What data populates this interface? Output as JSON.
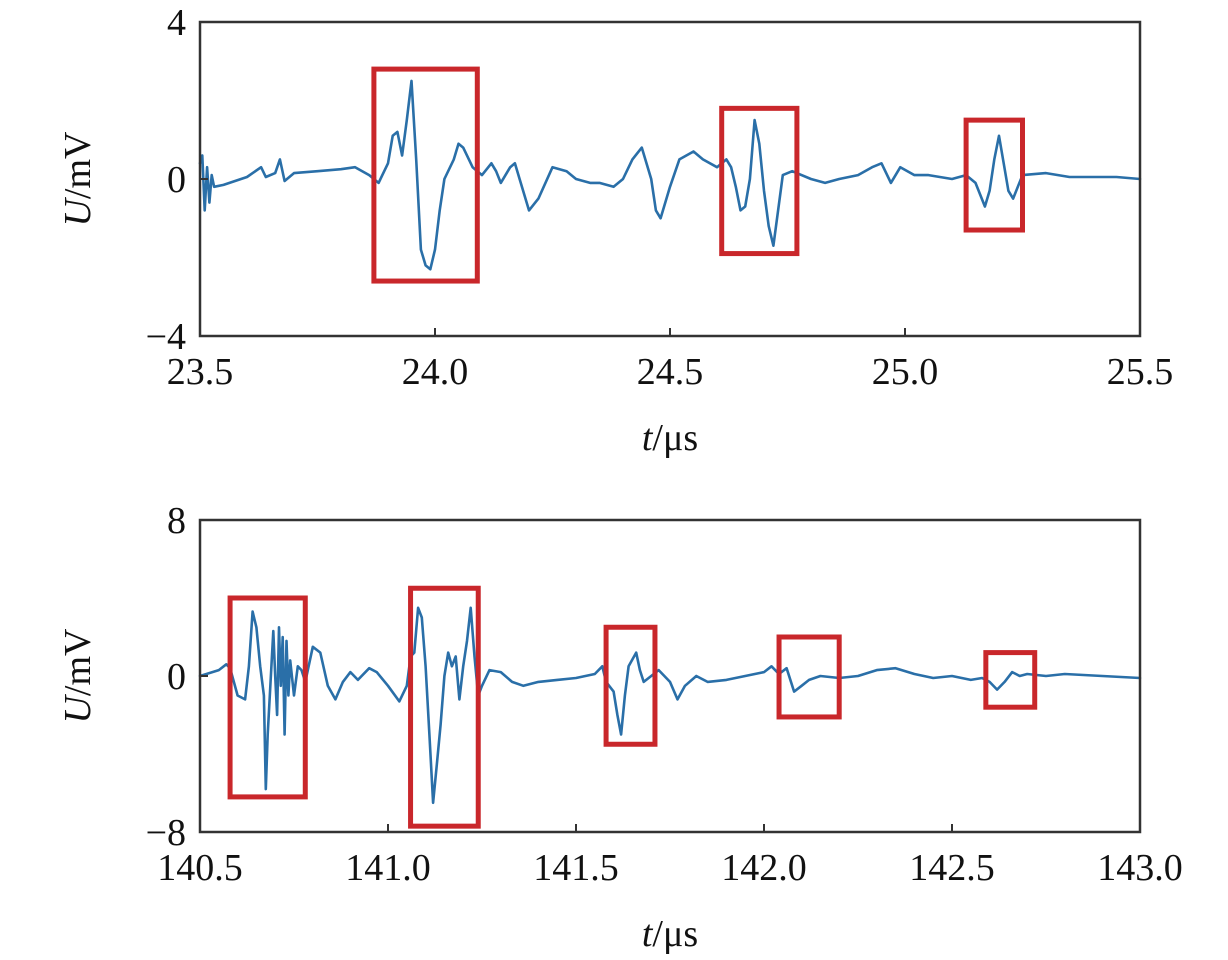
{
  "colors": {
    "signal": "#2a6fa8",
    "highlight": "#c9272b",
    "axis": "#333333"
  },
  "chart_data": [
    {
      "type": "line",
      "name": "top-panel",
      "xlabel_italic": "t",
      "xlabel_unit": "/μs",
      "ylabel_italic": "U",
      "ylabel_unit": "/mV",
      "xlim": [
        23.5,
        25.5
      ],
      "ylim": [
        -4,
        4
      ],
      "xticks": [
        23.5,
        24.0,
        24.5,
        25.0,
        25.5
      ],
      "xtick_labels": [
        "23.5",
        "24.0",
        "24.5",
        "25.0",
        "25.5"
      ],
      "yticks": [
        -4,
        0,
        4
      ],
      "ytick_labels": [
        "−4",
        "0",
        "4"
      ],
      "series": [
        {
          "name": "U",
          "points": [
            [
              23.5,
              0.4
            ],
            [
              23.505,
              0.6
            ],
            [
              23.51,
              -0.8
            ],
            [
              23.515,
              0.3
            ],
            [
              23.52,
              -0.6
            ],
            [
              23.525,
              0.1
            ],
            [
              23.53,
              -0.2
            ],
            [
              23.55,
              -0.15
            ],
            [
              23.6,
              0.05
            ],
            [
              23.63,
              0.3
            ],
            [
              23.64,
              0.05
            ],
            [
              23.66,
              0.15
            ],
            [
              23.67,
              0.5
            ],
            [
              23.68,
              -0.05
            ],
            [
              23.7,
              0.15
            ],
            [
              23.75,
              0.2
            ],
            [
              23.8,
              0.25
            ],
            [
              23.83,
              0.3
            ],
            [
              23.86,
              0.1
            ],
            [
              23.88,
              -0.1
            ],
            [
              23.9,
              0.4
            ],
            [
              23.91,
              1.1
            ],
            [
              23.92,
              1.2
            ],
            [
              23.93,
              0.6
            ],
            [
              23.94,
              1.5
            ],
            [
              23.95,
              2.5
            ],
            [
              23.96,
              0.5
            ],
            [
              23.97,
              -1.8
            ],
            [
              23.98,
              -2.2
            ],
            [
              23.99,
              -2.3
            ],
            [
              24.0,
              -1.8
            ],
            [
              24.01,
              -0.8
            ],
            [
              24.02,
              0.0
            ],
            [
              24.04,
              0.5
            ],
            [
              24.05,
              0.9
            ],
            [
              24.06,
              0.8
            ],
            [
              24.08,
              0.3
            ],
            [
              24.1,
              0.1
            ],
            [
              24.12,
              0.4
            ],
            [
              24.13,
              0.2
            ],
            [
              24.14,
              -0.1
            ],
            [
              24.16,
              0.3
            ],
            [
              24.17,
              0.4
            ],
            [
              24.18,
              0.0
            ],
            [
              24.2,
              -0.8
            ],
            [
              24.22,
              -0.5
            ],
            [
              24.25,
              0.3
            ],
            [
              24.28,
              0.2
            ],
            [
              24.3,
              0.0
            ],
            [
              24.33,
              -0.1
            ],
            [
              24.35,
              -0.1
            ],
            [
              24.38,
              -0.2
            ],
            [
              24.4,
              0.0
            ],
            [
              24.42,
              0.5
            ],
            [
              24.44,
              0.8
            ],
            [
              24.46,
              0.0
            ],
            [
              24.47,
              -0.8
            ],
            [
              24.48,
              -1.0
            ],
            [
              24.5,
              -0.2
            ],
            [
              24.52,
              0.5
            ],
            [
              24.55,
              0.7
            ],
            [
              24.57,
              0.5
            ],
            [
              24.6,
              0.3
            ],
            [
              24.62,
              0.5
            ],
            [
              24.63,
              0.3
            ],
            [
              24.64,
              -0.2
            ],
            [
              24.65,
              -0.8
            ],
            [
              24.66,
              -0.7
            ],
            [
              24.67,
              0.0
            ],
            [
              24.68,
              1.5
            ],
            [
              24.69,
              0.9
            ],
            [
              24.7,
              -0.3
            ],
            [
              24.71,
              -1.2
            ],
            [
              24.72,
              -1.7
            ],
            [
              24.73,
              -0.8
            ],
            [
              24.74,
              0.1
            ],
            [
              24.76,
              0.2
            ],
            [
              24.8,
              0.0
            ],
            [
              24.83,
              -0.1
            ],
            [
              24.86,
              0.0
            ],
            [
              24.9,
              0.1
            ],
            [
              24.93,
              0.3
            ],
            [
              24.95,
              0.4
            ],
            [
              24.97,
              -0.1
            ],
            [
              24.99,
              0.3
            ],
            [
              25.02,
              0.1
            ],
            [
              25.05,
              0.1
            ],
            [
              25.1,
              0.0
            ],
            [
              25.13,
              0.1
            ],
            [
              25.15,
              -0.1
            ],
            [
              25.17,
              -0.7
            ],
            [
              25.18,
              -0.3
            ],
            [
              25.19,
              0.5
            ],
            [
              25.2,
              1.1
            ],
            [
              25.21,
              0.4
            ],
            [
              25.22,
              -0.3
            ],
            [
              25.23,
              -0.5
            ],
            [
              25.24,
              -0.2
            ],
            [
              25.25,
              0.1
            ],
            [
              25.3,
              0.15
            ],
            [
              25.35,
              0.05
            ],
            [
              25.4,
              0.05
            ],
            [
              25.45,
              0.05
            ],
            [
              25.5,
              0.0
            ]
          ]
        }
      ],
      "highlight_boxes": [
        {
          "x0": 23.87,
          "x1": 24.09,
          "y0": -2.6,
          "y1": 2.8
        },
        {
          "x0": 24.61,
          "x1": 24.77,
          "y0": -1.9,
          "y1": 1.8
        },
        {
          "x0": 25.13,
          "x1": 25.25,
          "y0": -1.3,
          "y1": 1.5
        }
      ]
    },
    {
      "type": "line",
      "name": "bottom-panel",
      "xlabel_italic": "t",
      "xlabel_unit": "/μs",
      "ylabel_italic": "U",
      "ylabel_unit": "/mV",
      "xlim": [
        140.5,
        143.0
      ],
      "ylim": [
        -8,
        8
      ],
      "xticks": [
        140.5,
        141.0,
        141.5,
        142.0,
        142.5,
        143.0
      ],
      "xtick_labels": [
        "140.5",
        "141.0",
        "141.5",
        "142.0",
        "142.5",
        "143.0"
      ],
      "yticks": [
        -8,
        0,
        8
      ],
      "ytick_labels": [
        "−8",
        "0",
        "8"
      ],
      "series": [
        {
          "name": "U",
          "points": [
            [
              140.5,
              0.0
            ],
            [
              140.55,
              0.3
            ],
            [
              140.57,
              0.6
            ],
            [
              140.58,
              0.4
            ],
            [
              140.6,
              -1.0
            ],
            [
              140.62,
              -1.2
            ],
            [
              140.63,
              0.5
            ],
            [
              140.64,
              3.3
            ],
            [
              140.65,
              2.5
            ],
            [
              140.66,
              0.5
            ],
            [
              140.67,
              -1.0
            ],
            [
              140.675,
              -5.8
            ],
            [
              140.68,
              -3.0
            ],
            [
              140.69,
              0.5
            ],
            [
              140.695,
              2.3
            ],
            [
              140.7,
              0.0
            ],
            [
              140.705,
              -2.0
            ],
            [
              140.71,
              2.5
            ],
            [
              140.715,
              -0.5
            ],
            [
              140.72,
              2.0
            ],
            [
              140.725,
              -3.0
            ],
            [
              140.73,
              1.8
            ],
            [
              140.735,
              -1.0
            ],
            [
              140.74,
              0.8
            ],
            [
              140.75,
              -1.0
            ],
            [
              140.76,
              0.5
            ],
            [
              140.77,
              0.3
            ],
            [
              140.78,
              -0.3
            ],
            [
              140.8,
              1.5
            ],
            [
              140.82,
              1.2
            ],
            [
              140.84,
              -0.5
            ],
            [
              140.86,
              -1.2
            ],
            [
              140.88,
              -0.3
            ],
            [
              140.9,
              0.2
            ],
            [
              140.92,
              -0.2
            ],
            [
              140.95,
              0.4
            ],
            [
              140.97,
              0.2
            ],
            [
              141.0,
              -0.5
            ],
            [
              141.03,
              -1.3
            ],
            [
              141.05,
              -0.5
            ],
            [
              141.06,
              1.0
            ],
            [
              141.07,
              1.2
            ],
            [
              141.08,
              3.5
            ],
            [
              141.09,
              3.0
            ],
            [
              141.1,
              0.5
            ],
            [
              141.11,
              -3.0
            ],
            [
              141.12,
              -6.5
            ],
            [
              141.13,
              -4.5
            ],
            [
              141.14,
              -2.5
            ],
            [
              141.15,
              0.0
            ],
            [
              141.16,
              1.2
            ],
            [
              141.17,
              0.5
            ],
            [
              141.18,
              1.0
            ],
            [
              141.19,
              -1.2
            ],
            [
              141.2,
              0.5
            ],
            [
              141.21,
              1.8
            ],
            [
              141.22,
              3.5
            ],
            [
              141.23,
              1.0
            ],
            [
              141.24,
              -1.0
            ],
            [
              141.25,
              -0.5
            ],
            [
              141.27,
              0.3
            ],
            [
              141.3,
              0.2
            ],
            [
              141.33,
              -0.3
            ],
            [
              141.36,
              -0.5
            ],
            [
              141.4,
              -0.3
            ],
            [
              141.45,
              -0.2
            ],
            [
              141.5,
              -0.1
            ],
            [
              141.55,
              0.1
            ],
            [
              141.57,
              0.5
            ],
            [
              141.58,
              -0.3
            ],
            [
              141.6,
              -0.8
            ],
            [
              141.61,
              -2.0
            ],
            [
              141.62,
              -3.0
            ],
            [
              141.63,
              -1.0
            ],
            [
              141.64,
              0.5
            ],
            [
              141.66,
              1.2
            ],
            [
              141.67,
              0.3
            ],
            [
              141.68,
              -0.3
            ],
            [
              141.7,
              0.0
            ],
            [
              141.72,
              0.3
            ],
            [
              141.75,
              -0.3
            ],
            [
              141.77,
              -1.2
            ],
            [
              141.79,
              -0.5
            ],
            [
              141.82,
              0.0
            ],
            [
              141.85,
              -0.3
            ],
            [
              141.9,
              -0.2
            ],
            [
              141.95,
              0.0
            ],
            [
              142.0,
              0.2
            ],
            [
              142.02,
              0.5
            ],
            [
              142.04,
              0.1
            ],
            [
              142.06,
              0.4
            ],
            [
              142.08,
              -0.8
            ],
            [
              142.1,
              -0.5
            ],
            [
              142.12,
              -0.2
            ],
            [
              142.15,
              0.0
            ],
            [
              142.2,
              -0.1
            ],
            [
              142.25,
              0.0
            ],
            [
              142.3,
              0.3
            ],
            [
              142.35,
              0.4
            ],
            [
              142.4,
              0.1
            ],
            [
              142.45,
              -0.1
            ],
            [
              142.5,
              0.0
            ],
            [
              142.55,
              -0.2
            ],
            [
              142.58,
              -0.1
            ],
            [
              142.6,
              -0.3
            ],
            [
              142.62,
              -0.7
            ],
            [
              142.64,
              -0.3
            ],
            [
              142.66,
              0.2
            ],
            [
              142.68,
              0.0
            ],
            [
              142.7,
              0.1
            ],
            [
              142.75,
              0.0
            ],
            [
              142.8,
              0.1
            ],
            [
              142.85,
              0.05
            ],
            [
              142.9,
              0.0
            ],
            [
              143.0,
              -0.1
            ]
          ]
        }
      ],
      "highlight_boxes": [
        {
          "x0": 140.58,
          "x1": 140.78,
          "y0": -6.2,
          "y1": 4.0
        },
        {
          "x0": 141.06,
          "x1": 141.24,
          "y0": -7.7,
          "y1": 4.5
        },
        {
          "x0": 141.58,
          "x1": 141.71,
          "y0": -3.5,
          "y1": 2.5
        },
        {
          "x0": 142.04,
          "x1": 142.2,
          "y0": -2.1,
          "y1": 2.0
        },
        {
          "x0": 142.59,
          "x1": 142.72,
          "y0": -1.6,
          "y1": 1.2
        }
      ]
    }
  ]
}
